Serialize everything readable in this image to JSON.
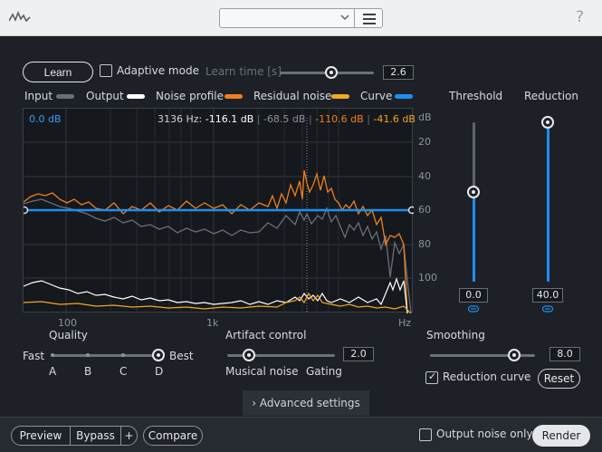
{
  "learn": {
    "button": "Learn",
    "adaptive_mode": "Adaptive mode",
    "learn_time_label": "Learn time [s]",
    "learn_time_value": "2.6",
    "learn_time_level": 0.55
  },
  "legend": {
    "input": "Input",
    "output": "Output",
    "noise_profile": "Noise profile",
    "residual_noise": "Residual noise",
    "curve": "Curve",
    "colors": {
      "input": "#6b6f75",
      "output": "#ffffff",
      "noise_profile": "#f07f1f",
      "residual_noise": "#f5a623",
      "curve": "#1e8ff0"
    }
  },
  "graph": {
    "curve_level": "0.0 dB",
    "readout": {
      "freq": "3136 Hz:",
      "input": "-116.1 dB",
      "sep1": "|",
      "output": "-68.5 dB",
      "sep2": "|",
      "profile": "-110.6 dB",
      "sep3": "|",
      "curve": "-41.6 dB"
    },
    "db_labels": [
      "dB",
      "20",
      "40",
      "60",
      "80",
      "100"
    ],
    "freq_labels": [
      "100",
      "1k",
      "Hz"
    ]
  },
  "threshold": {
    "label": "Threshold",
    "value": "0.0",
    "level": 0.56
  },
  "reduction": {
    "label": "Reduction",
    "value": "40.0",
    "level": 1.0
  },
  "quality": {
    "label": "Quality",
    "fast": "Fast",
    "best": "Best",
    "options": [
      "A",
      "B",
      "C",
      "D"
    ],
    "selected": "D"
  },
  "artifact": {
    "label": "Artifact control",
    "value": "2.0",
    "left": "Musical noise",
    "right": "Gating",
    "level": 0.2
  },
  "smoothing": {
    "label": "Smoothing",
    "value": "8.0",
    "level": 0.8
  },
  "reduction_curve": {
    "label": "Reduction curve",
    "checked": true
  },
  "reset": "Reset",
  "advanced": "Advanced settings",
  "bottom": {
    "preview": "Preview",
    "bypass": "Bypass",
    "plus": "+",
    "compare": "Compare",
    "output_noise_only": "Output noise only",
    "render": "Render"
  }
}
